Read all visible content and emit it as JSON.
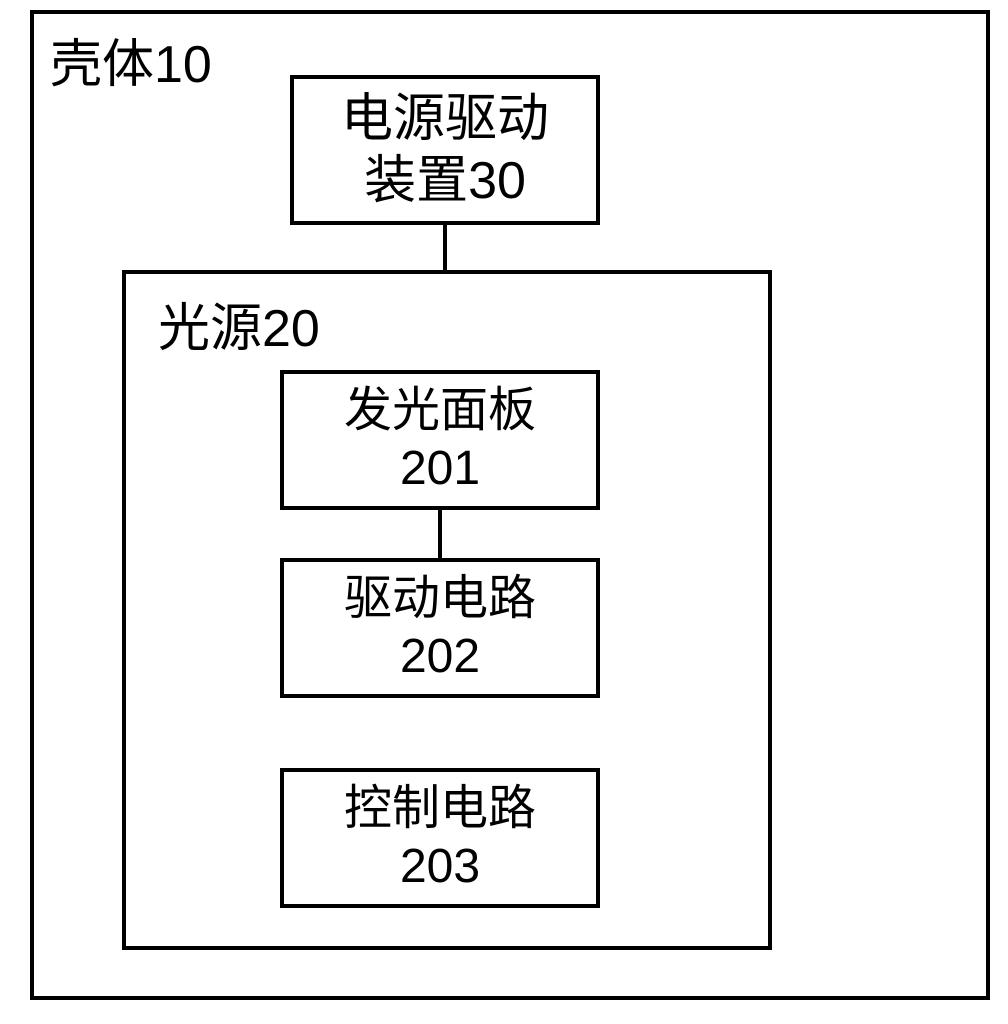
{
  "diagram": {
    "outer": {
      "label": "壳体10",
      "border_color": "#000000",
      "border_width": 4
    },
    "power_driver": {
      "line1": "电源驱动",
      "line2": "装置30",
      "border_color": "#000000",
      "border_width": 4,
      "font_size": 52
    },
    "light_source": {
      "label": "光源20",
      "border_color": "#000000",
      "border_width": 4
    },
    "panel": {
      "line1": "发光面板",
      "line2": "201",
      "border_color": "#000000",
      "border_width": 4,
      "font_size": 48
    },
    "drive_circuit": {
      "line1": "驱动电路",
      "line2": "202",
      "border_color": "#000000",
      "border_width": 4,
      "font_size": 48
    },
    "control_circuit": {
      "line1": "控制电路",
      "line2": "203",
      "border_color": "#000000",
      "border_width": 4,
      "font_size": 48
    },
    "connectors": {
      "color": "#000000",
      "width": 4
    },
    "background_color": "#ffffff",
    "text_color": "#000000"
  }
}
